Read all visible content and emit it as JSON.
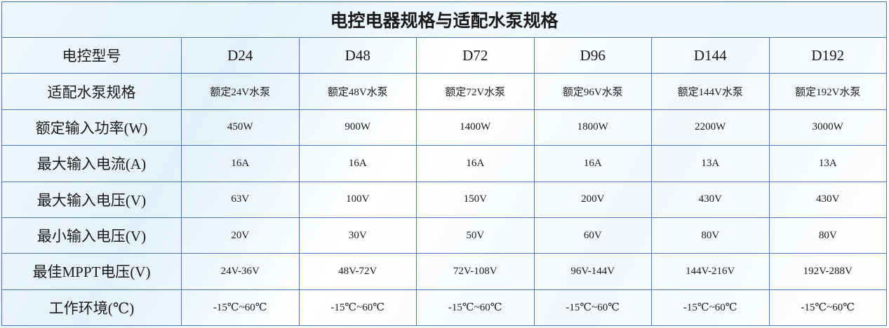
{
  "header": {
    "title": "电控电器规格与适配水泵规格"
  },
  "table": {
    "rows": [
      [
        "电控型号",
        "D24",
        "D48",
        "D72",
        "D96",
        "D144",
        "D192"
      ],
      [
        "适配水泵规格",
        "额定24V水泵",
        "额定48V水泵",
        "额定72V水泵",
        "额定96V水泵",
        "额定144V水泵",
        "额定192V水泵"
      ],
      [
        "额定输入功率(W)",
        "450W",
        "900W",
        "1400W",
        "1800W",
        "2200W",
        "3000W"
      ],
      [
        "最大输入电流(A)",
        "16A",
        "16A",
        "16A",
        "16A",
        "13A",
        "13A"
      ],
      [
        "最大输入电压(V)",
        "63V",
        "100V",
        "150V",
        "200V",
        "430V",
        "430V"
      ],
      [
        "最小输入电压(V)",
        "20V",
        "30V",
        "50V",
        "60V",
        "80V",
        "80V"
      ],
      [
        "最佳MPPT电压(V)",
        "24V-36V",
        "48V-72V",
        "72V-108V",
        "96V-144V",
        "144V-216V",
        "192V-288V"
      ],
      [
        "工作环境(℃)",
        "-15℃~60℃",
        "-15℃~60℃",
        "-15℃~60℃",
        "-15℃~60℃",
        "-15℃~60℃",
        "-15℃~60℃"
      ]
    ]
  }
}
